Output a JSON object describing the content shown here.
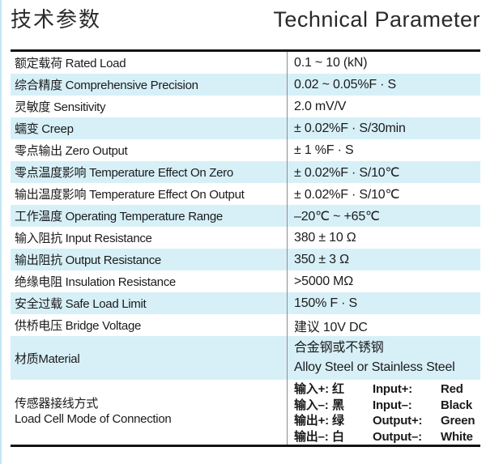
{
  "header": {
    "title_zh": "技术参数",
    "title_en": "Technical Parameter"
  },
  "colors": {
    "stripe": "#d7f0f8",
    "divider": "#8c8c8c",
    "rule": "#141414",
    "text": "#1b1b1b",
    "edge_line": "#c2e6f2"
  },
  "table": {
    "rows": [
      {
        "label": "额定载荷 Rated Load",
        "value": "0.1 ~ 10 (kN)"
      },
      {
        "label": "综合精度 Comprehensive Precision",
        "value": "0.02 ~ 0.05%F · S"
      },
      {
        "label": "灵敏度 Sensitivity",
        "value": "2.0 mV/V"
      },
      {
        "label": "蠕变 Creep",
        "value": "± 0.02%F · S/30min"
      },
      {
        "label": "零点输出 Zero Output",
        "value": "± 1 %F · S"
      },
      {
        "label": "零点温度影响 Temperature Effect On Zero",
        "value": "± 0.02%F · S/10℃"
      },
      {
        "label": "输出温度影响 Temperature Effect On Output",
        "value": "± 0.02%F · S/10℃"
      },
      {
        "label": "工作温度 Operating Temperature Range",
        "value": "–20℃ ~ +65℃"
      },
      {
        "label": "输入阻抗 Input Resistance",
        "value": "380 ± 10 Ω"
      },
      {
        "label": "输出阻抗 Output Resistance",
        "value": "350 ± 3 Ω"
      },
      {
        "label": "绝缘电阻 Insulation Resistance",
        "value": ">5000 MΩ"
      },
      {
        "label": "安全过载 Safe Load Limit",
        "value": "150% F · S"
      },
      {
        "label": "供桥电压 Bridge Voltage",
        "value": "建议 10V DC"
      },
      {
        "label": "材质Material",
        "value_lines": [
          "合金钢或不锈钢",
          "Alloy Steel or Stainless Steel"
        ]
      },
      {
        "label_lines": [
          "传感器接线方式",
          "Load Cell Mode of Connection"
        ],
        "wiring": [
          {
            "zh_label": "输入+:",
            "zh_color": "红",
            "en_label": "Input+:",
            "en_color": "Red"
          },
          {
            "zh_label": "输入–:",
            "zh_color": "黑",
            "en_label": "Input–:",
            "en_color": "Black"
          },
          {
            "zh_label": "输出+:",
            "zh_color": "绿",
            "en_label": "Output+:",
            "en_color": "Green"
          },
          {
            "zh_label": "输出–:",
            "zh_color": "白",
            "en_label": "Output–:",
            "en_color": "White"
          }
        ]
      }
    ]
  }
}
